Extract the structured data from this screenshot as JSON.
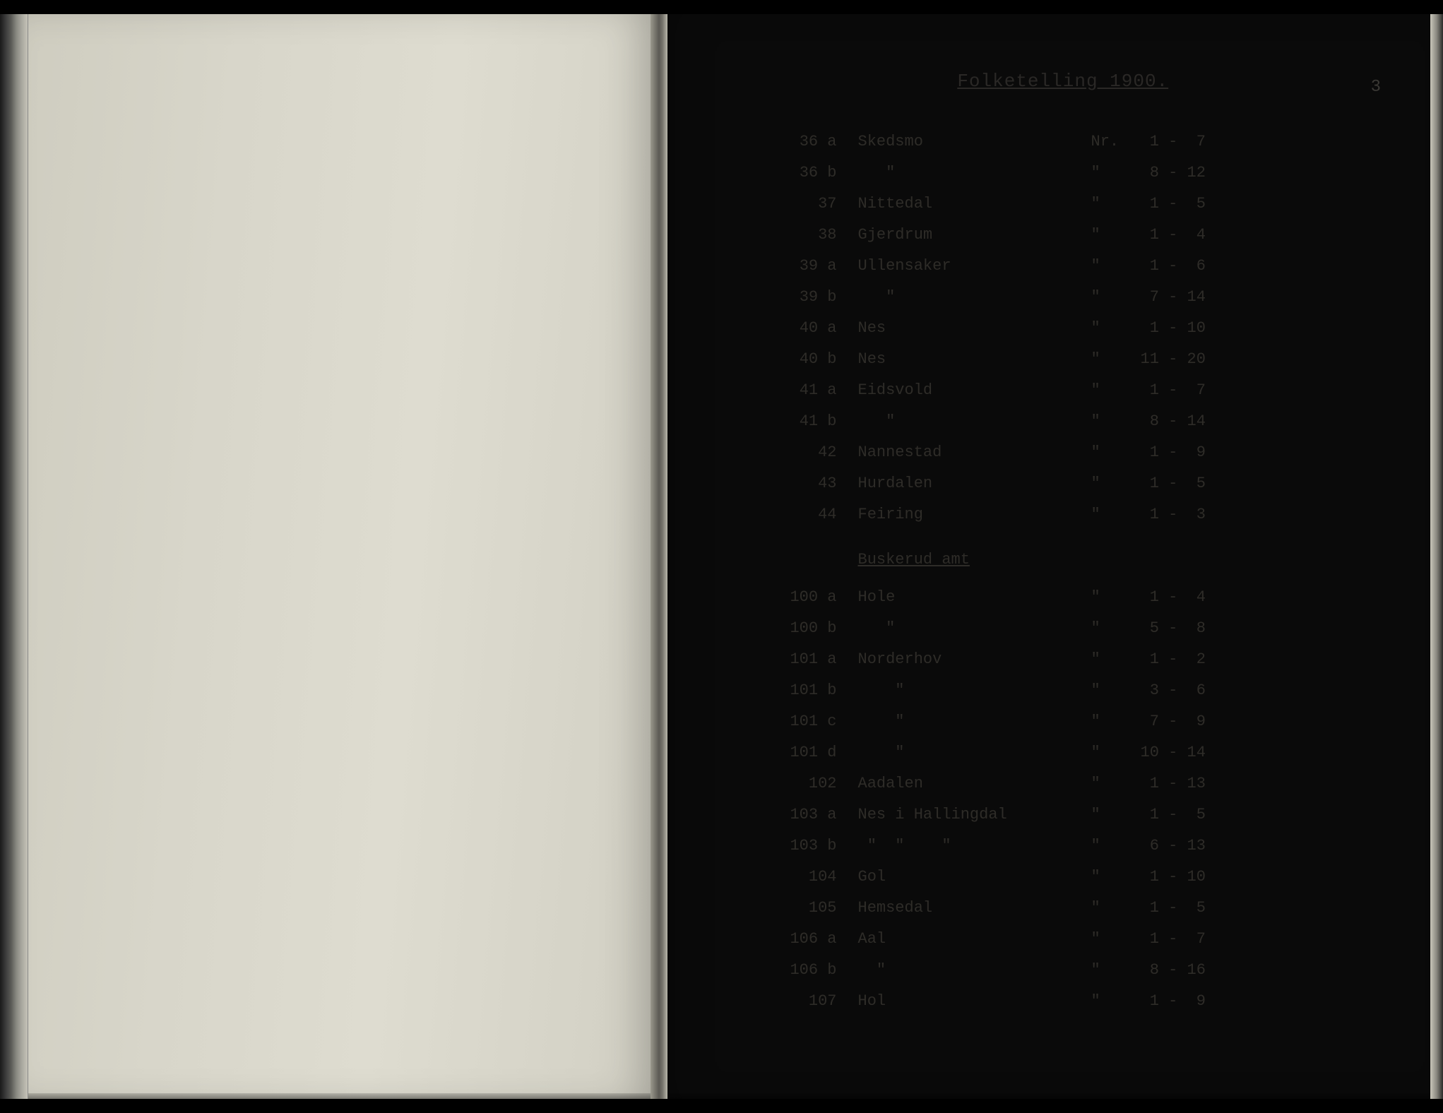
{
  "title": "Folketelling 1900.",
  "page_number": "3",
  "section2_header": "Buskerud amt",
  "colors": {
    "page_bg": "#e8e6da",
    "left_page_bg": "#d8d6ca",
    "text": "#2e2c28",
    "edge_dark": "#0a0a0a"
  },
  "typography": {
    "font_family": "Courier New",
    "title_fontsize": 26,
    "row_fontsize": 22
  },
  "section1_rows": [
    {
      "id": "36 a",
      "name": "Skedsmo",
      "mark": "Nr.",
      "range": " 1 -  7"
    },
    {
      "id": "36 b",
      "name": "   \"",
      "mark": "\"",
      "range": " 8 - 12"
    },
    {
      "id": "37",
      "name": "Nittedal",
      "mark": "\"",
      "range": " 1 -  5"
    },
    {
      "id": "38",
      "name": "Gjerdrum",
      "mark": "\"",
      "range": " 1 -  4"
    },
    {
      "id": "39 a",
      "name": "Ullensaker",
      "mark": "\"",
      "range": " 1 -  6"
    },
    {
      "id": "39 b",
      "name": "   \"",
      "mark": "\"",
      "range": " 7 - 14"
    },
    {
      "id": "40 a",
      "name": "Nes",
      "mark": "\"",
      "range": " 1 - 10"
    },
    {
      "id": "40 b",
      "name": "Nes",
      "mark": "\"",
      "range": "11 - 20"
    },
    {
      "id": "41 a",
      "name": "Eidsvold",
      "mark": "\"",
      "range": " 1 -  7"
    },
    {
      "id": "41 b",
      "name": "   \"",
      "mark": "\"",
      "range": " 8 - 14"
    },
    {
      "id": "42",
      "name": "Nannestad",
      "mark": "\"",
      "range": " 1 -  9"
    },
    {
      "id": "43",
      "name": "Hurdalen",
      "mark": "\"",
      "range": " 1 -  5"
    },
    {
      "id": "44",
      "name": "Feiring",
      "mark": "\"",
      "range": " 1 -  3"
    }
  ],
  "section2_rows": [
    {
      "id": "100 a",
      "name": "Hole",
      "mark": "\"",
      "range": " 1 -  4"
    },
    {
      "id": "100 b",
      "name": "   \"",
      "mark": "\"",
      "range": " 5 -  8"
    },
    {
      "id": "101 a",
      "name": "Norderhov",
      "mark": "\"",
      "range": " 1 -  2"
    },
    {
      "id": "101 b",
      "name": "    \"",
      "mark": "\"",
      "range": " 3 -  6"
    },
    {
      "id": "101 c",
      "name": "    \"",
      "mark": "\"",
      "range": " 7 -  9"
    },
    {
      "id": "101 d",
      "name": "    \"",
      "mark": "\"",
      "range": "10 - 14"
    },
    {
      "id": "102",
      "name": "Aadalen",
      "mark": "\"",
      "range": " 1 - 13"
    },
    {
      "id": "103 a",
      "name": "Nes i Hallingdal",
      "mark": "\"",
      "range": " 1 -  5"
    },
    {
      "id": "103 b",
      "name": " \"  \"    \"",
      "mark": "\"",
      "range": " 6 - 13"
    },
    {
      "id": "104",
      "name": "Gol",
      "mark": "\"",
      "range": " 1 - 10"
    },
    {
      "id": "105",
      "name": "Hemsedal",
      "mark": "\"",
      "range": " 1 -  5"
    },
    {
      "id": "106 a",
      "name": "Aal",
      "mark": "\"",
      "range": " 1 -  7"
    },
    {
      "id": "106 b",
      "name": "  \"",
      "mark": "\"",
      "range": " 8 - 16"
    },
    {
      "id": "107",
      "name": "Hol",
      "mark": "\"",
      "range": " 1 -  9"
    }
  ]
}
